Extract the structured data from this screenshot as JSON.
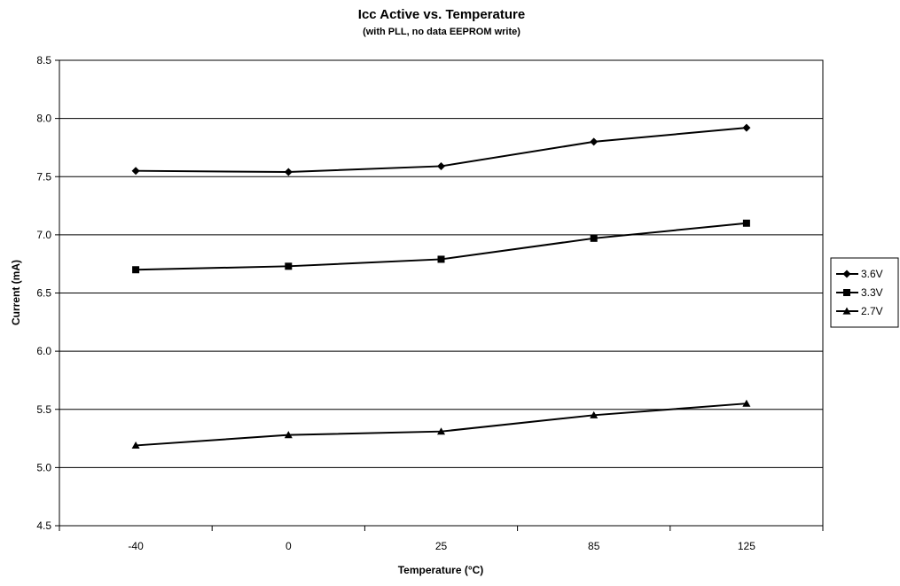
{
  "chart_data": {
    "type": "line",
    "title": "Icc Active vs. Temperature",
    "subtitle": "(with PLL, no data EEPROM write)",
    "xlabel": "Temperature (°C)",
    "ylabel": "Current (mA)",
    "categories": [
      "-40",
      "0",
      "25",
      "85",
      "125"
    ],
    "ylim": [
      4.5,
      8.5
    ],
    "yticks": [
      "4.5",
      "5.0",
      "5.5",
      "6.0",
      "6.5",
      "7.0",
      "7.5",
      "8.0",
      "8.5"
    ],
    "grid": "horizontal",
    "legend_position": "right",
    "series": [
      {
        "name": "3.6V",
        "marker": "diamond",
        "color": "#000000",
        "values": [
          7.55,
          7.54,
          7.59,
          7.8,
          7.92
        ]
      },
      {
        "name": "3.3V",
        "marker": "square",
        "color": "#000000",
        "values": [
          6.7,
          6.73,
          6.79,
          6.97,
          7.1
        ]
      },
      {
        "name": "2.7V",
        "marker": "triangle",
        "color": "#000000",
        "values": [
          5.19,
          5.28,
          5.31,
          5.45,
          5.55
        ]
      }
    ]
  }
}
